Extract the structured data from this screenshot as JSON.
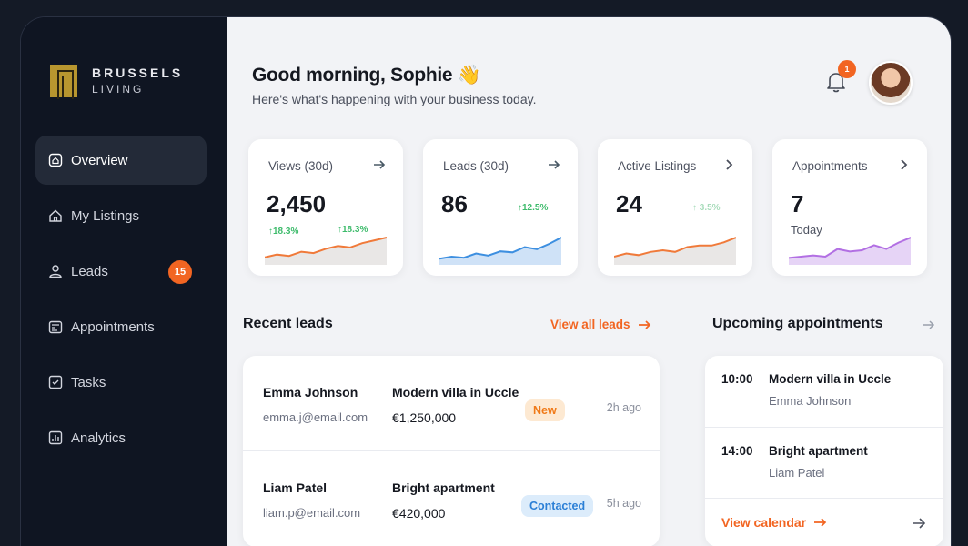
{
  "brand": {
    "line1": "BRUSSELS",
    "line2": "LIVING"
  },
  "sidebar": {
    "items": [
      {
        "label": "Overview",
        "icon": "home-icon",
        "active": true
      },
      {
        "label": "My Listings",
        "icon": "house-icon"
      },
      {
        "label": "Leads",
        "icon": "user-icon",
        "badge": "15"
      },
      {
        "label": "Appointments",
        "icon": "calendar-icon"
      },
      {
        "label": "Tasks",
        "icon": "checkbox-icon"
      },
      {
        "label": "Analytics",
        "icon": "chart-icon"
      }
    ]
  },
  "header": {
    "greeting": "Good morning, Sophie",
    "wave": "👋",
    "subtitle": "Here's what's happening with your business today.",
    "notifications": "1"
  },
  "stats": [
    {
      "title": "Views (30d)",
      "value": "2,450",
      "delta1": "↑18.3%",
      "delta2": "↑18.3%",
      "color": "#f07a3a",
      "fill": "#e9e7e6",
      "trend": [
        10,
        12,
        11,
        14,
        13,
        16,
        18,
        17,
        20,
        22,
        24
      ]
    },
    {
      "title": "Leads (30d)",
      "value": "86",
      "delta1": "↑12.5%",
      "color": "#3d8fe0",
      "fill": "#cfe2f7",
      "trend": [
        8,
        10,
        9,
        13,
        11,
        15,
        14,
        19,
        17,
        22,
        28
      ]
    },
    {
      "title": "Active Listings",
      "value": "24",
      "delta1": "↑ 3.5%",
      "color": "#f07a3a",
      "fill": "#e9e7e6",
      "trend": [
        9,
        11,
        10,
        12,
        13,
        12,
        15,
        16,
        16,
        18,
        21
      ]
    },
    {
      "title": "Appointments",
      "value": "7",
      "sub": "Today",
      "color": "#b26fe3",
      "fill": "#e6d4f6",
      "trend": [
        8,
        9,
        10,
        9,
        15,
        13,
        14,
        18,
        15,
        20,
        24
      ]
    }
  ],
  "recent_leads": {
    "title": "Recent leads",
    "link": "View all leads",
    "rows": [
      {
        "name": "Emma Johnson",
        "email": "emma.j@email.com",
        "property": "Modern villa in Uccle",
        "price": "€1,250,000",
        "status": "New",
        "time": "2h ago"
      },
      {
        "name": "Liam Patel",
        "email": "liam.p@email.com",
        "property": "Bright apartment",
        "price": "€420,000",
        "status": "Contacted",
        "time": "5h ago"
      }
    ]
  },
  "appointments": {
    "title": "Upcoming appointments",
    "items": [
      {
        "time": "10:00",
        "title": "Modern villa in Uccle",
        "person": "Emma Johnson"
      },
      {
        "time": "14:00",
        "title": "Bright apartment",
        "person": "Liam Patel"
      }
    ],
    "link": "View calendar"
  }
}
